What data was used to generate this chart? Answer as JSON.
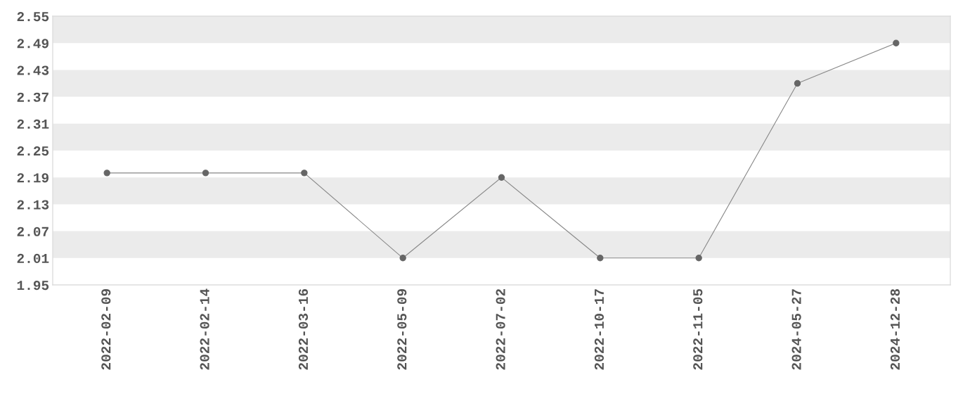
{
  "chart_data": {
    "type": "line",
    "categories": [
      "2022-02-09",
      "2022-02-14",
      "2022-03-16",
      "2022-05-09",
      "2022-07-02",
      "2022-10-17",
      "2022-11-05",
      "2024-05-27",
      "2024-12-28"
    ],
    "series": [
      {
        "color": "#888888",
        "values": [
          2.2,
          2.2,
          2.2,
          2.01,
          2.19,
          2.01,
          2.01,
          2.4,
          2.49
        ]
      }
    ],
    "marker": "circle",
    "line_style": "solid",
    "grid": false,
    "legend": false,
    "ylim": [
      1.95,
      2.55
    ],
    "yticks": [
      1.95,
      2.01,
      2.07,
      2.13,
      2.19,
      2.25,
      2.31,
      2.37,
      2.43,
      2.49,
      2.55
    ],
    "bands": [
      {
        "axis": "y",
        "from": 2.49,
        "to": 2.55,
        "color": "#ebebeb"
      },
      {
        "axis": "y",
        "from": 2.37,
        "to": 2.43,
        "color": "#ebebeb"
      },
      {
        "axis": "y",
        "from": 2.25,
        "to": 2.31,
        "color": "#ebebeb"
      },
      {
        "axis": "y",
        "from": 2.13,
        "to": 2.19,
        "color": "#ebebeb"
      },
      {
        "axis": "y",
        "from": 2.01,
        "to": 2.07,
        "color": "#ebebeb"
      }
    ]
  }
}
